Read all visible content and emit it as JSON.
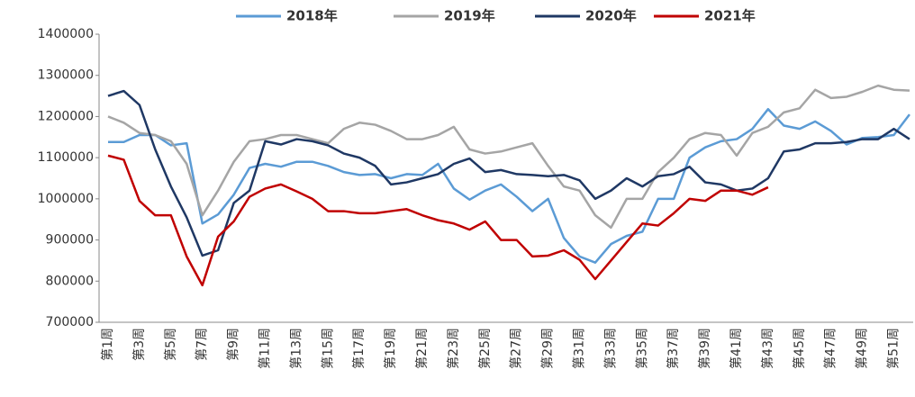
{
  "chart_data": {
    "type": "line",
    "categories": [
      "第1周",
      null,
      "第3周",
      null,
      "第5周",
      null,
      "第7周",
      null,
      "第9周",
      null,
      "第11周",
      null,
      "第13周",
      null,
      "第15周",
      null,
      "第17周",
      null,
      "第19周",
      null,
      "第21周",
      null,
      "第23周",
      null,
      "第25周",
      null,
      "第27周",
      null,
      "第29周",
      null,
      "第31周",
      null,
      "第33周",
      null,
      "第35周",
      null,
      "第37周",
      null,
      "第39周",
      null,
      "第41周",
      null,
      "第43周",
      null,
      "第45周",
      null,
      "第47周",
      null,
      "第49周",
      null,
      "第51周",
      null
    ],
    "series": [
      {
        "name": "2018年",
        "color": "#5b9bd5",
        "values": [
          1138000,
          1138000,
          1155000,
          1155000,
          1130000,
          1135000,
          940000,
          962000,
          1010000,
          1075000,
          1085000,
          1078000,
          1090000,
          1090000,
          1080000,
          1065000,
          1058000,
          1060000,
          1050000,
          1060000,
          1058000,
          1085000,
          1025000,
          998000,
          1020000,
          1035000,
          1005000,
          970000,
          1000000,
          905000,
          860000,
          845000,
          890000,
          910000,
          920000,
          1000000,
          1000000,
          1100000,
          1125000,
          1140000,
          1145000,
          1170000,
          1218000,
          1178000,
          1170000,
          1188000,
          1165000,
          1132000,
          1148000,
          1150000,
          1155000,
          1205000
        ]
      },
      {
        "name": "2019年",
        "color": "#a5a5a5",
        "values": [
          1200000,
          1185000,
          1160000,
          1155000,
          1140000,
          1085000,
          960000,
          1020000,
          1090000,
          1140000,
          1145000,
          1155000,
          1155000,
          1145000,
          1135000,
          1170000,
          1185000,
          1180000,
          1165000,
          1145000,
          1145000,
          1155000,
          1175000,
          1120000,
          1110000,
          1115000,
          1125000,
          1135000,
          1080000,
          1030000,
          1020000,
          960000,
          930000,
          1000000,
          1000000,
          1065000,
          1100000,
          1145000,
          1160000,
          1155000,
          1105000,
          1160000,
          1175000,
          1210000,
          1220000,
          1265000,
          1245000,
          1248000,
          1260000,
          1275000,
          1265000,
          1263000
        ]
      },
      {
        "name": "2020年",
        "color": "#1f3864",
        "values": [
          1250000,
          1262000,
          1228000,
          1120000,
          1030000,
          955000,
          862000,
          875000,
          990000,
          1020000,
          1140000,
          1132000,
          1145000,
          1140000,
          1130000,
          1110000,
          1100000,
          1080000,
          1035000,
          1040000,
          1050000,
          1060000,
          1085000,
          1098000,
          1065000,
          1070000,
          1060000,
          1058000,
          1055000,
          1058000,
          1045000,
          1000000,
          1020000,
          1050000,
          1030000,
          1055000,
          1060000,
          1078000,
          1040000,
          1035000,
          1020000,
          1025000,
          1050000,
          1115000,
          1120000,
          1135000,
          1135000,
          1138000,
          1145000,
          1145000,
          1170000,
          1145000
        ]
      },
      {
        "name": "2021年",
        "color": "#c00000",
        "values": [
          1105000,
          1095000,
          995000,
          960000,
          960000,
          860000,
          790000,
          908000,
          945000,
          1005000,
          1025000,
          1035000,
          1018000,
          1000000,
          970000,
          970000,
          965000,
          965000,
          970000,
          975000,
          960000,
          948000,
          940000,
          925000,
          945000,
          900000,
          900000,
          860000,
          862000,
          875000,
          852000,
          805000,
          850000,
          895000,
          940000,
          935000,
          965000,
          1000000,
          995000,
          1020000,
          1020000,
          1010000,
          1028000,
          null,
          null,
          null,
          null,
          null,
          null,
          null,
          null,
          null
        ]
      }
    ],
    "ylim": [
      700000,
      1400000
    ],
    "yticks": [
      700000,
      800000,
      900000,
      1000000,
      1100000,
      1200000,
      1300000,
      1400000
    ],
    "legend": "top"
  }
}
